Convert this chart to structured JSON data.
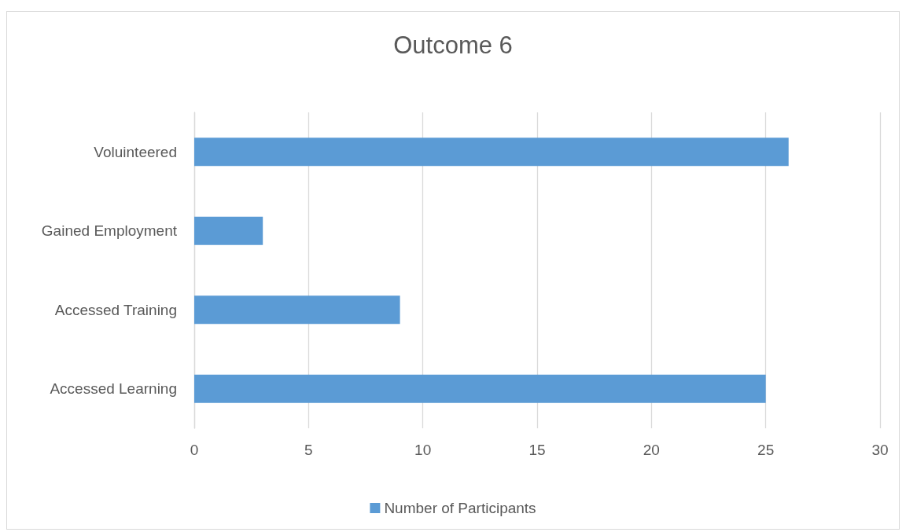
{
  "chart_data": {
    "type": "bar",
    "orientation": "horizontal",
    "title": "Outcome 6",
    "categories": [
      "Voluinteered",
      "Gained Employment",
      "Accessed Training",
      "Accessed Learning"
    ],
    "series": [
      {
        "name": "Number of Participants",
        "color": "#5b9bd5",
        "values": [
          26,
          3,
          9,
          25
        ]
      }
    ],
    "xlim": [
      0,
      30
    ],
    "xticks": [
      0,
      5,
      10,
      15,
      20,
      25,
      30
    ],
    "grid": "x",
    "legend": "bottom"
  }
}
